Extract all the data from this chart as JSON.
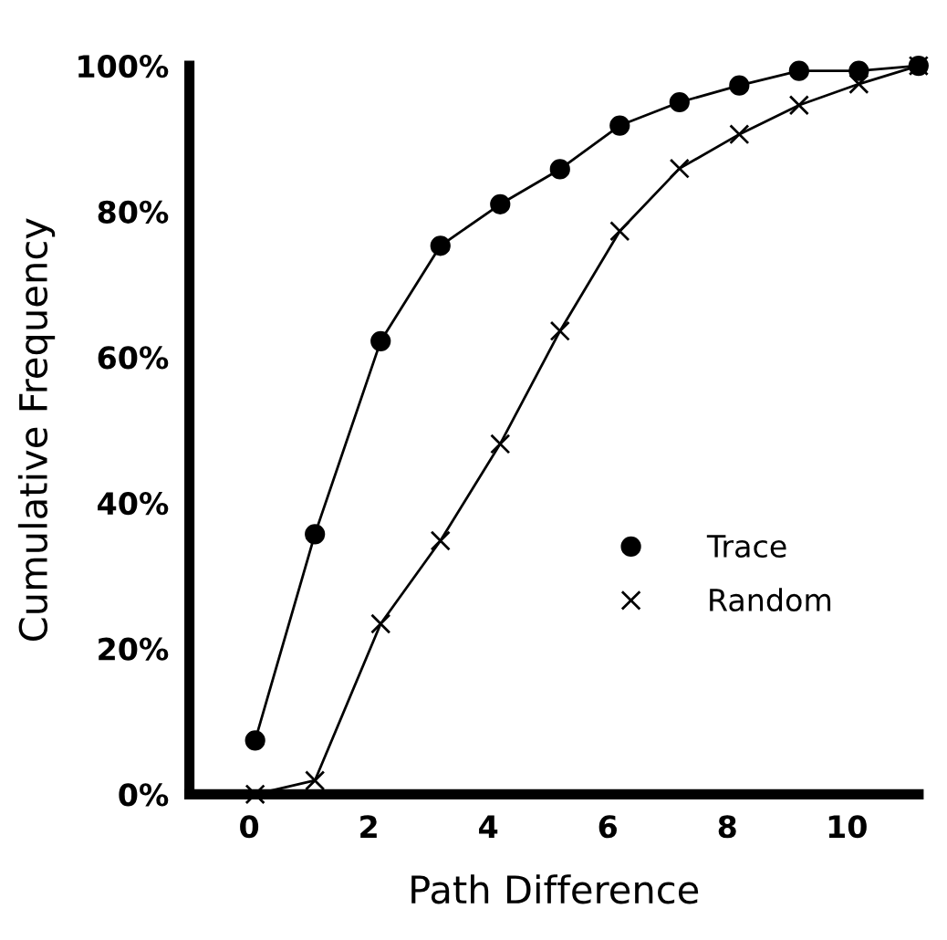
{
  "chart_data": {
    "type": "line",
    "xlabel": "Path Difference",
    "ylabel": "Cumulative Frequency",
    "xlim": [
      -1,
      11.2
    ],
    "xticks": [
      0,
      2,
      4,
      6,
      8,
      10
    ],
    "ylim": [
      0,
      100
    ],
    "yticks": [
      {
        "value": 0,
        "label": "0%"
      },
      {
        "value": 20,
        "label": "20%"
      },
      {
        "value": 40,
        "label": "40%"
      },
      {
        "value": 60,
        "label": "60%"
      },
      {
        "value": 80,
        "label": "80%"
      },
      {
        "value": 100,
        "label": "100%"
      }
    ],
    "grid": false,
    "legend": "right",
    "series": [
      {
        "name": "Trace",
        "color": "#000000",
        "marker": "circle",
        "x": [
          0.1,
          1.1,
          2.2,
          3.2,
          4.2,
          5.2,
          6.2,
          7.2,
          8.2,
          9.2,
          10.2,
          11.2
        ],
        "values": [
          7.4,
          35.7,
          62.2,
          75.3,
          81,
          85.8,
          91.8,
          95,
          97.3,
          99.3,
          99.3,
          100
        ]
      },
      {
        "name": "Random",
        "color": "#000000",
        "marker": "cross",
        "x": [
          0.1,
          1.1,
          2.2,
          3.2,
          4.2,
          5.2,
          6.2,
          7.2,
          8.2,
          9.2,
          10.2,
          11.2
        ],
        "values": [
          0,
          1.9,
          23.4,
          34.8,
          48.1,
          63.6,
          77.3,
          85.9,
          90.6,
          94.6,
          97.5,
          100
        ]
      }
    ]
  }
}
